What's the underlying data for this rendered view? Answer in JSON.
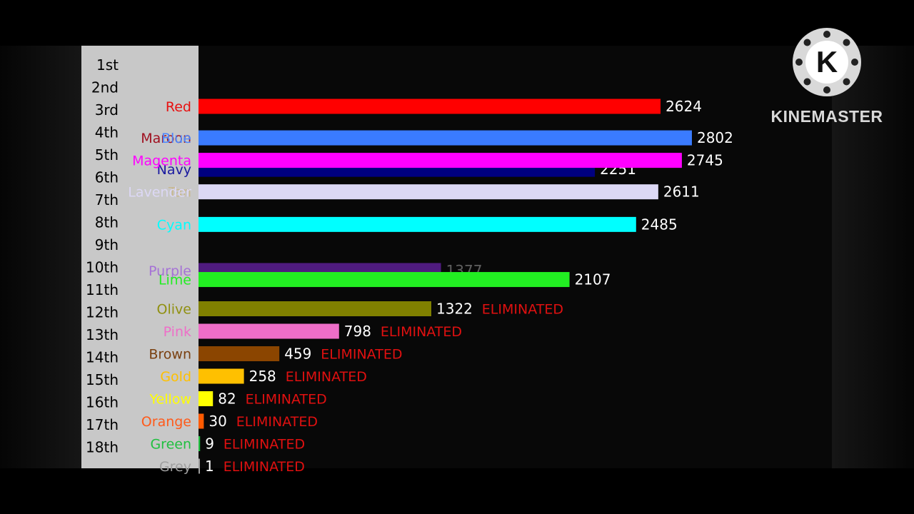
{
  "eliminated_label": "ELIMINATED",
  "eliminated_color": "#e01010",
  "watermark": {
    "text": "KINEMASTER",
    "logo_letter": "K"
  },
  "chart_data": {
    "type": "bar",
    "orientation": "horizontal",
    "title": "",
    "xlabel": "",
    "ylabel": "",
    "xlim": [
      0,
      3000
    ],
    "grid": false,
    "ranks": [
      "1st",
      "2nd",
      "3rd",
      "4th",
      "5th",
      "6th",
      "7th",
      "8th",
      "9th",
      "10th",
      "11th",
      "12th",
      "13th",
      "14th",
      "15th",
      "16th",
      "17th",
      "18th"
    ],
    "bars": [
      {
        "name": "Red",
        "value": 2624,
        "color": "#ff0000",
        "pos": 1.0,
        "label_color": "#e81010",
        "eliminated": false,
        "show_value": true
      },
      {
        "name": "Maroon",
        "value": 2802,
        "color": "#3a7bff",
        "pos": 2.4,
        "label_color": "#a01020",
        "eliminated": false,
        "show_value": false,
        "name_only": true
      },
      {
        "name": "Blue",
        "value": 2802,
        "color": "#3a7bff",
        "pos": 2.4,
        "label_color": "#4a86ff",
        "eliminated": false,
        "show_value": true
      },
      {
        "name": "Navy",
        "value": 2251,
        "color": "#000080",
        "pos": 3.8,
        "label_color": "#1a1aa0",
        "eliminated": false,
        "show_value": true
      },
      {
        "name": "Magenta",
        "value": 2745,
        "color": "#ff00ff",
        "pos": 3.4,
        "label_color": "#ff00ff",
        "eliminated": false,
        "show_value": true
      },
      {
        "name": "Tan",
        "value": 2611,
        "color": "#dcd8f5",
        "pos": 4.8,
        "label_color": "#c8b890",
        "eliminated": false,
        "show_value": false,
        "name_only": true
      },
      {
        "name": "Lavender",
        "value": 2611,
        "color": "#dcd8f5",
        "pos": 4.8,
        "label_color": "#dcd8f5",
        "eliminated": false,
        "show_value": true
      },
      {
        "name": "Cyan",
        "value": 2485,
        "color": "#00ffff",
        "pos": 6.25,
        "label_color": "#00ffff",
        "eliminated": false,
        "show_value": true
      },
      {
        "name": "Purple",
        "value": 1377,
        "color": "#8a2be2",
        "pos": 8.3,
        "label_color": "#8a2be2",
        "eliminated": false,
        "show_value": true,
        "faded": true
      },
      {
        "name": "Lime",
        "value": 2107,
        "color": "#22ee22",
        "pos": 8.7,
        "label_color": "#22ee22",
        "eliminated": false,
        "show_value": true
      },
      {
        "name": "Olive",
        "value": 1322,
        "color": "#808000",
        "pos": 10.0,
        "label_color": "#909010",
        "eliminated": true,
        "show_value": true
      },
      {
        "name": "Pink",
        "value": 798,
        "color": "#ee6ec8",
        "pos": 11.0,
        "label_color": "#ee6ec8",
        "eliminated": true,
        "show_value": true
      },
      {
        "name": "Brown",
        "value": 459,
        "color": "#8b4500",
        "pos": 12.0,
        "label_color": "#7a4010",
        "eliminated": true,
        "show_value": true
      },
      {
        "name": "Gold",
        "value": 258,
        "color": "#ffc000",
        "pos": 13.0,
        "label_color": "#ffc000",
        "eliminated": true,
        "show_value": true
      },
      {
        "name": "Yellow",
        "value": 82,
        "color": "#ffff00",
        "pos": 14.0,
        "label_color": "#ffff00",
        "eliminated": true,
        "show_value": true
      },
      {
        "name": "Orange",
        "value": 30,
        "color": "#ff5a00",
        "pos": 15.0,
        "label_color": "#ff5a1a",
        "eliminated": true,
        "show_value": true
      },
      {
        "name": "Green",
        "value": 9,
        "color": "#20c040",
        "pos": 16.0,
        "label_color": "#20c040",
        "eliminated": true,
        "show_value": true
      },
      {
        "name": "Grey",
        "value": 1,
        "color": "#a0a0a0",
        "pos": 17.0,
        "label_color": "#a0a0a0",
        "eliminated": true,
        "show_value": true
      }
    ]
  }
}
